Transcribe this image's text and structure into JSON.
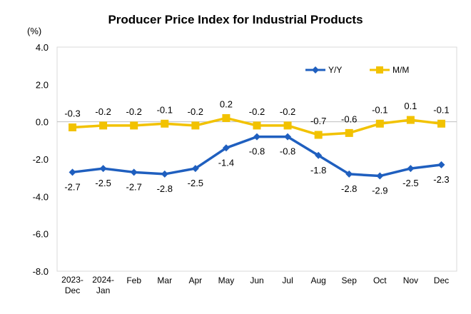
{
  "chart_data": {
    "type": "line",
    "title": "Producer Price Index for Industrial Products",
    "unit_label": "(%)",
    "ylim": [
      -8.0,
      4.0
    ],
    "yticks": [
      "4.0",
      "2.0",
      "0.0",
      "-2.0",
      "-4.0",
      "-6.0",
      "-8.0"
    ],
    "ytick_values": [
      4,
      2,
      0,
      -2,
      -4,
      -6,
      -8
    ],
    "grid": false,
    "legend_position": "top-right",
    "categories": [
      [
        "2023-",
        "Dec"
      ],
      [
        "2024-",
        "Jan"
      ],
      [
        "Feb"
      ],
      [
        "Mar"
      ],
      [
        "Apr"
      ],
      [
        "May"
      ],
      [
        "Jun"
      ],
      [
        "Jul"
      ],
      [
        "Aug"
      ],
      [
        "Sep"
      ],
      [
        "Oct"
      ],
      [
        "Nov"
      ],
      [
        "Dec"
      ]
    ],
    "series": [
      {
        "name": "Y/Y",
        "color": "#1f5fbf",
        "marker": "diamond",
        "values": [
          -2.7,
          -2.5,
          -2.7,
          -2.8,
          -2.5,
          -1.4,
          -0.8,
          -0.8,
          -1.8,
          -2.8,
          -2.9,
          -2.5,
          -2.3
        ],
        "labels": [
          "-2.7",
          "-2.5",
          "-2.7",
          "-2.8",
          "-2.5",
          "-1.4",
          "-0.8",
          "-0.8",
          "-1.8",
          "-2.8",
          "-2.9",
          "-2.5",
          "-2.3"
        ]
      },
      {
        "name": "M/M",
        "color": "#f2c200",
        "marker": "square",
        "values": [
          -0.3,
          -0.2,
          -0.2,
          -0.1,
          -0.2,
          0.2,
          -0.2,
          -0.2,
          -0.7,
          -0.6,
          -0.1,
          0.1,
          -0.1
        ],
        "labels": [
          "-0.3",
          "-0.2",
          "-0.2",
          "-0.1",
          "-0.2",
          "0.2",
          "-0.2",
          "-0.2",
          "-0.7",
          "-0.6",
          "-0.1",
          "0.1",
          "-0.1"
        ]
      }
    ]
  }
}
